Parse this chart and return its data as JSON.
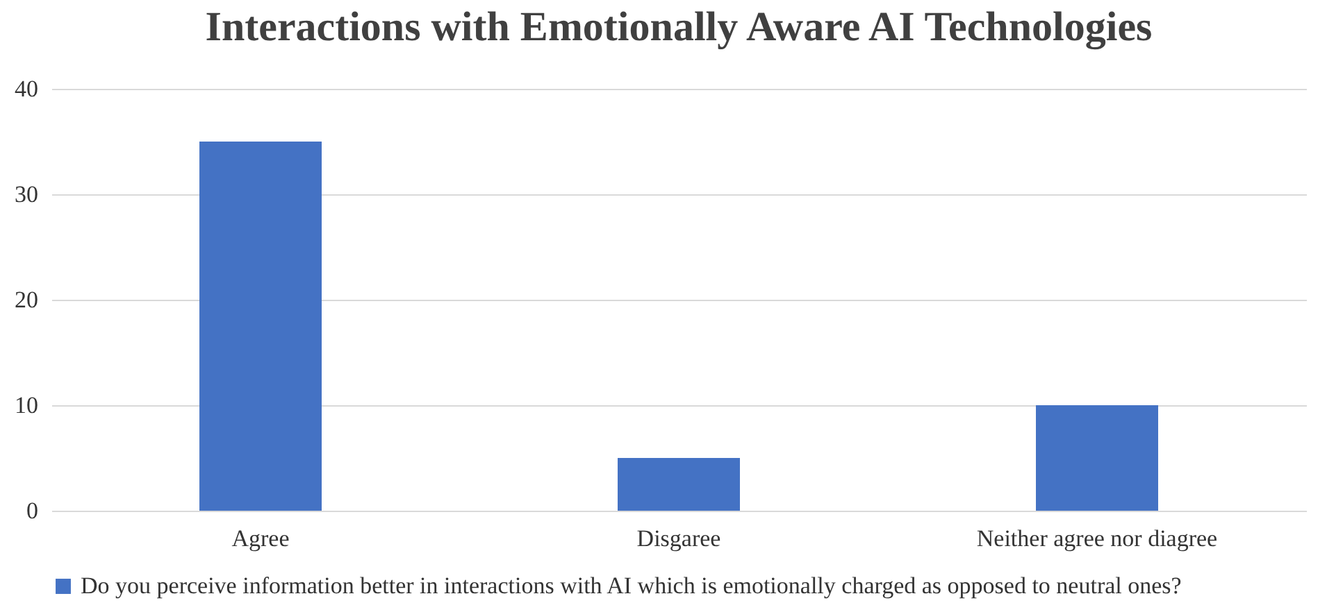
{
  "chart_data": {
    "type": "bar",
    "title": "Interactions with Emotionally Aware AI Technologies",
    "categories": [
      "Agree",
      "Disgaree",
      "Neither agree nor diagree"
    ],
    "series": [
      {
        "name": "Do you perceive information better in interactions with AI which is emotionally charged as opposed to neutral ones?",
        "color": "#4472c4",
        "values": [
          35,
          5,
          10
        ]
      }
    ],
    "ylim": [
      0,
      40
    ],
    "yticks": [
      0,
      10,
      20,
      30,
      40
    ],
    "grid": "y",
    "legend": "bottom"
  }
}
